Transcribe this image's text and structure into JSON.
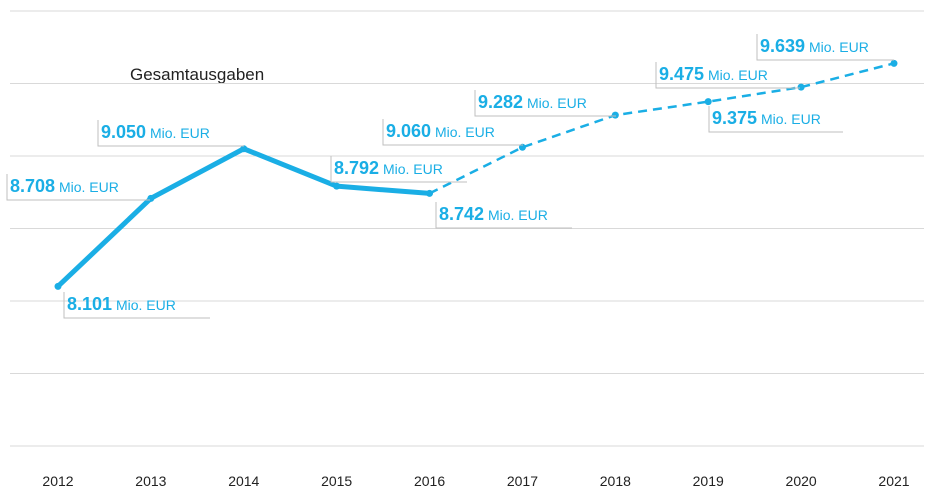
{
  "chart_data": {
    "type": "line",
    "title": "Gesamtausgaben",
    "categories": [
      "2012",
      "2013",
      "2014",
      "2015",
      "2016",
      "2017",
      "2018",
      "2019",
      "2020",
      "2021"
    ],
    "values": [
      8101,
      8708,
      9050,
      8792,
      8742,
      9060,
      9282,
      9375,
      9475,
      9639
    ],
    "value_labels": [
      "8.101",
      "8.708",
      "9.050",
      "8.792",
      "8.742",
      "9.060",
      "9.282",
      "9.375",
      "9.475",
      "9.639"
    ],
    "unit": "Mio. EUR",
    "color": "#1aaee5",
    "dashed_from_category": "2016",
    "ylim": [
      7000,
      10000
    ],
    "yticks": [
      7000,
      7500,
      8000,
      8500,
      9000,
      9500,
      10000
    ],
    "grid": true
  }
}
